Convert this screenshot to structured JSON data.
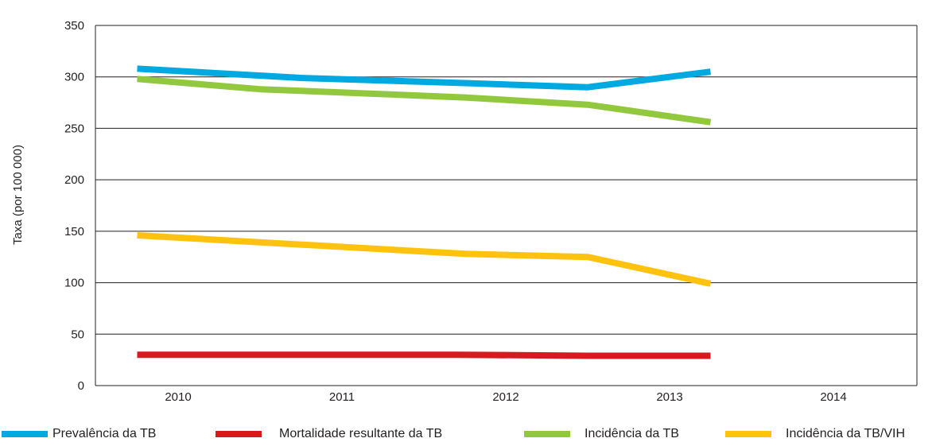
{
  "chart_data": {
    "type": "line",
    "title": "",
    "xlabel": "",
    "ylabel": "Taxa (por 100 000)",
    "categories": [
      "2010",
      "2011",
      "2012",
      "2013",
      "2014"
    ],
    "ylim": [
      0,
      350
    ],
    "yticks": [
      0,
      50,
      100,
      150,
      200,
      250,
      300,
      350
    ],
    "grid": true,
    "legend_position": "bottom",
    "series": [
      {
        "name": "Prevalência da TB",
        "color": "#00a9e0",
        "points": [
          [
            2009.75,
            308
          ],
          [
            2010.75,
            299
          ],
          [
            2011.75,
            294
          ],
          [
            2012.5,
            290
          ],
          [
            2013.25,
            305
          ]
        ]
      },
      {
        "name": "Mortalidade resultante da TB",
        "color": "#d71920",
        "points": [
          [
            2009.75,
            30
          ],
          [
            2010.5,
            30
          ],
          [
            2011.7,
            30
          ],
          [
            2012.5,
            29
          ],
          [
            2013.25,
            29
          ]
        ]
      },
      {
        "name": "Incidência da TB",
        "color": "#92c83e",
        "points": [
          [
            2009.75,
            298
          ],
          [
            2010.5,
            288
          ],
          [
            2011.75,
            280
          ],
          [
            2012.5,
            273
          ],
          [
            2013.25,
            256
          ]
        ]
      },
      {
        "name": "Incidência da TB/VIH",
        "color": "#ffc20e",
        "points": [
          [
            2009.75,
            146
          ],
          [
            2011.75,
            128
          ],
          [
            2012.5,
            125
          ],
          [
            2013.25,
            99
          ]
        ]
      }
    ]
  }
}
